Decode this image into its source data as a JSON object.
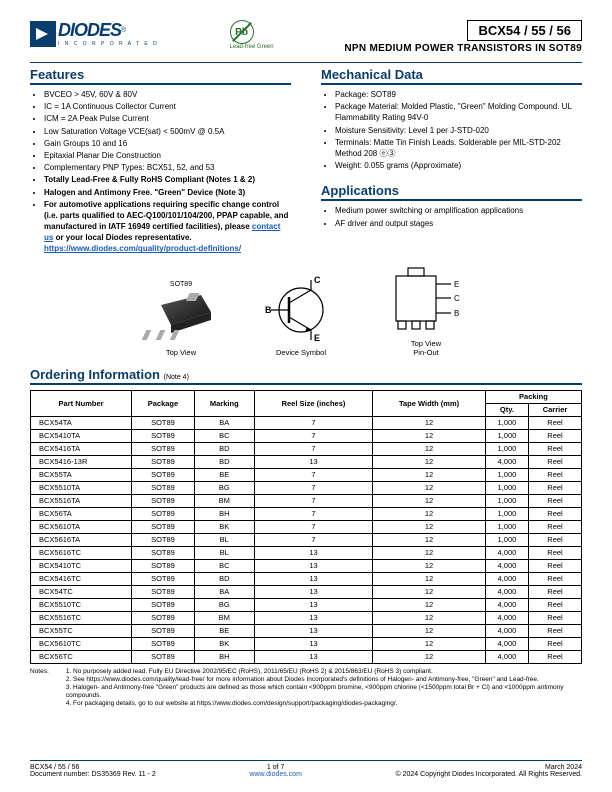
{
  "header": {
    "logo_text": "DIODES",
    "logo_sub": "I N C O R P O R A T E D",
    "pb_label": "Lead-free Green",
    "pb_text": "Pb",
    "part_title": "BCX54 / 55 / 56",
    "part_sub": "NPN MEDIUM POWER TRANSISTORS IN SOT89"
  },
  "features": {
    "title": "Features",
    "items": [
      "BVCEO > 45V, 60V & 80V",
      "IC = 1A Continuous Collector Current",
      "ICM = 2A Peak Pulse Current",
      "Low Saturation Voltage VCE(sat) < 500mV @ 0.5A",
      "Gain Groups 10 and 16",
      "Epitaxial Planar Die Construction",
      "Complementary PNP Types: BCX51, 52, and 53"
    ],
    "bold_items": [
      "Totally Lead-Free & Fully RoHS Compliant (Notes 1 & 2)",
      "Halogen and Antimony Free. \"Green\" Device (Note 3)",
      "For automotive applications requiring specific change control (i.e. parts qualified to AEC-Q100/101/104/200, PPAP capable, and manufactured in IATF 16949 certified facilities), please "
    ],
    "contact_text": "contact us",
    "bold_tail": " or your local Diodes representative.",
    "link": "https://www.diodes.com/quality/product-definitions/"
  },
  "mechanical": {
    "title": "Mechanical Data",
    "items": [
      "Package: SOT89",
      "Package Material: Molded Plastic, \"Green\" Molding Compound. UL Flammability Rating 94V-0",
      "Moisture Sensitivity: Level 1 per J-STD-020",
      "Terminals: Matte Tin Finish Leads. Solderable per MIL-STD-202 Method 208 ⓔ③",
      "Weight: 0.055 grams (Approximate)"
    ]
  },
  "applications": {
    "title": "Applications",
    "items": [
      "Medium power switching or amplification applications",
      "AF driver and output stages"
    ]
  },
  "diagrams": {
    "sot_label": "SOT89",
    "top_view": "Top View",
    "device_symbol": "Device Symbol",
    "pinout": "Top View\nPin-Out",
    "pinE": "E",
    "pinC": "C",
    "pinB": "B"
  },
  "ordering": {
    "title": "Ordering Information",
    "note": "(Note 4)",
    "headers": {
      "part": "Part Number",
      "package": "Package",
      "marking": "Marking",
      "reel": "Reel Size (inches)",
      "tape": "Tape Width (mm)",
      "packing": "Packing",
      "qty": "Qty.",
      "carrier": "Carrier"
    },
    "rows": [
      [
        "BCX54TA",
        "SOT89",
        "BA",
        "7",
        "12",
        "1,000",
        "Reel"
      ],
      [
        "BCX5410TA",
        "SOT89",
        "BC",
        "7",
        "12",
        "1,000",
        "Reel"
      ],
      [
        "BCX5416TA",
        "SOT89",
        "BD",
        "7",
        "12",
        "1,000",
        "Reel"
      ],
      [
        "BCX5416-13R",
        "SOT89",
        "BD",
        "13",
        "12",
        "4,000",
        "Reel"
      ],
      [
        "BCX55TA",
        "SOT89",
        "BE",
        "7",
        "12",
        "1,000",
        "Reel"
      ],
      [
        "BCX5510TA",
        "SOT89",
        "BG",
        "7",
        "12",
        "1,000",
        "Reel"
      ],
      [
        "BCX5516TA",
        "SOT89",
        "BM",
        "7",
        "12",
        "1,000",
        "Reel"
      ],
      [
        "BCX56TA",
        "SOT89",
        "BH",
        "7",
        "12",
        "1,000",
        "Reel"
      ],
      [
        "BCX5610TA",
        "SOT89",
        "BK",
        "7",
        "12",
        "1,000",
        "Reel"
      ],
      [
        "BCX5616TA",
        "SOT89",
        "BL",
        "7",
        "12",
        "1,000",
        "Reel"
      ],
      [
        "BCX5616TC",
        "SOT89",
        "BL",
        "13",
        "12",
        "4,000",
        "Reel"
      ],
      [
        "BCX5410TC",
        "SOT89",
        "BC",
        "13",
        "12",
        "4,000",
        "Reel"
      ],
      [
        "BCX5416TC",
        "SOT89",
        "BD",
        "13",
        "12",
        "4,000",
        "Reel"
      ],
      [
        "BCX54TC",
        "SOT89",
        "BA",
        "13",
        "12",
        "4,000",
        "Reel"
      ],
      [
        "BCX5510TC",
        "SOT89",
        "BG",
        "13",
        "12",
        "4,000",
        "Reel"
      ],
      [
        "BCX5516TC",
        "SOT89",
        "BM",
        "13",
        "12",
        "4,000",
        "Reel"
      ],
      [
        "BCX55TC",
        "SOT89",
        "BE",
        "13",
        "12",
        "4,000",
        "Reel"
      ],
      [
        "BCX5610TC",
        "SOT89",
        "BK",
        "13",
        "12",
        "4,000",
        "Reel"
      ],
      [
        "BCX56TC",
        "SOT89",
        "BH",
        "13",
        "12",
        "4,000",
        "Reel"
      ]
    ]
  },
  "notes": {
    "label": "Notes:",
    "lines": [
      "1. No purposely added lead. Fully EU Directive 2002/95/EC (RoHS), 2011/65/EU (RoHS 2) & 2015/863/EU (RoHS 3) compliant.",
      "2. See https://www.diodes.com/quality/lead-free/ for more information about Diodes Incorporated's definitions of Halogen- and Antimony-free, \"Green\" and Lead-free.",
      "3. Halogen- and Antimony-free \"Green\" products are defined as those which contain <900ppm bromine, <900ppm chlorine (<1500ppm total Br + Cl) and <1000ppm antimony compounds.",
      "4. For packaging details, go to our website at https://www.diodes.com/design/support/packaging/diodes-packaging/."
    ]
  },
  "footer": {
    "left1": "BCX54 / 55 / 56",
    "left2": "Document number: DS35369 Rev. 11 - 2",
    "center1": "1 of 7",
    "center2": "www.diodes.com",
    "right1": "March 2024",
    "right2": "© 2024 Copyright Diodes Incorporated. All Rights Reserved."
  }
}
